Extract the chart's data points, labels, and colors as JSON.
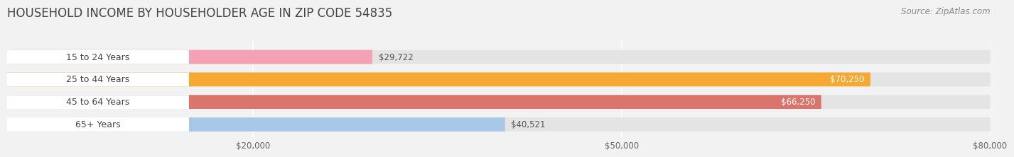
{
  "title": "HOUSEHOLD INCOME BY HOUSEHOLDER AGE IN ZIP CODE 54835",
  "source": "Source: ZipAtlas.com",
  "categories": [
    "15 to 24 Years",
    "25 to 44 Years",
    "45 to 64 Years",
    "65+ Years"
  ],
  "values": [
    29722,
    70250,
    66250,
    40521
  ],
  "bar_colors": [
    "#f4a0b5",
    "#f5a832",
    "#d9756a",
    "#a8c8e8"
  ],
  "bar_label_colors": [
    "#555555",
    "#ffffff",
    "#ffffff",
    "#555555"
  ],
  "bar_labels": [
    "$29,722",
    "$70,250",
    "$66,250",
    "$40,521"
  ],
  "value_inside": [
    false,
    true,
    true,
    false
  ],
  "data_min": 0,
  "data_max": 80000,
  "xticks": [
    20000,
    50000,
    80000
  ],
  "xtick_labels": [
    "$20,000",
    "$50,000",
    "$80,000"
  ],
  "background_color": "#f2f2f2",
  "bar_bg_color": "#e4e4e4",
  "white_pill_color": "#ffffff",
  "title_fontsize": 12,
  "source_fontsize": 8.5,
  "tick_fontsize": 8.5,
  "label_fontsize": 8.5,
  "category_fontsize": 9
}
